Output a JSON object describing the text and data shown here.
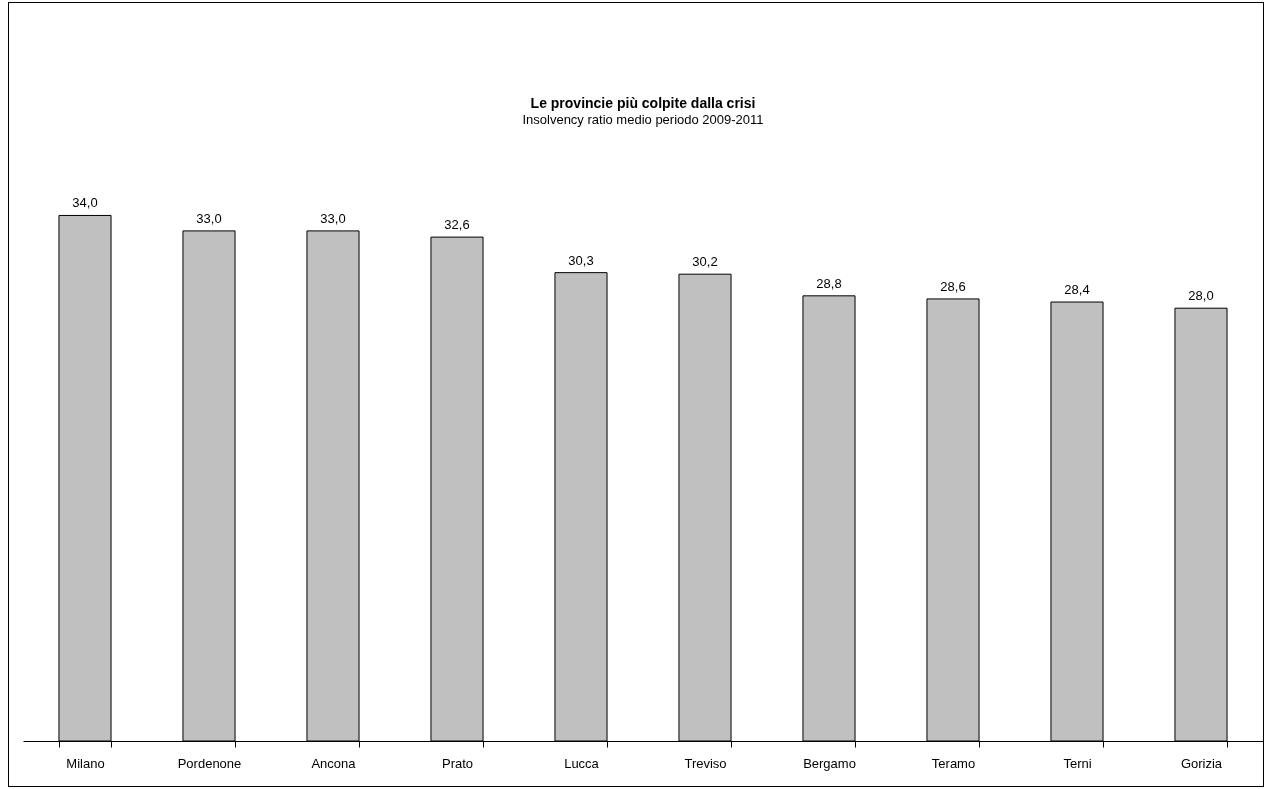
{
  "chart_data": {
    "type": "bar",
    "title": "Le provincie più colpite dalla crisi",
    "subtitle": "Insolvency ratio medio periodo 2009-2011",
    "categories": [
      "Milano",
      "Pordenone",
      "Ancona",
      "Prato",
      "Lucca",
      "Treviso",
      "Bergamo",
      "Teramo",
      "Terni",
      "Gorizia"
    ],
    "values": [
      34.0,
      33.0,
      33.0,
      32.6,
      30.3,
      30.2,
      28.8,
      28.6,
      28.4,
      28.0
    ],
    "value_labels": [
      "34,0",
      "33,0",
      "33,0",
      "32,6",
      "30,3",
      "30,2",
      "28,8",
      "28,6",
      "28,4",
      "28,0"
    ],
    "color": "#c0c0c0",
    "grid": false
  }
}
